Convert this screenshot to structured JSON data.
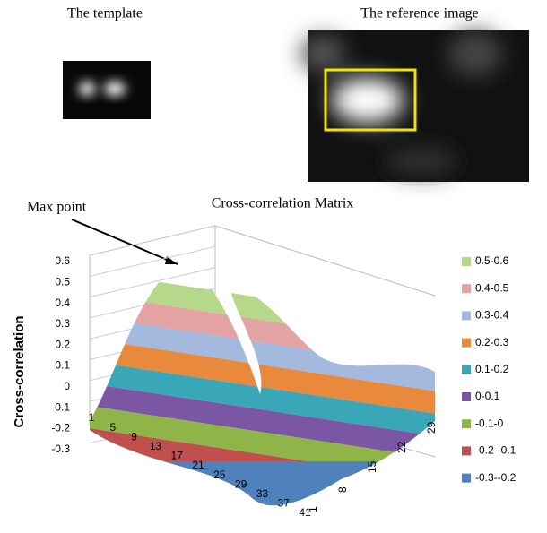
{
  "panels": {
    "template": {
      "title": "The template"
    },
    "reference": {
      "title": "The reference image"
    }
  },
  "annotation": "Max point",
  "chart": {
    "title": "Cross-correlation Matrix",
    "y_axis_label": "Cross-correlation",
    "yticks": [
      "0.6",
      "0.5",
      "0.4",
      "0.3",
      "0.2",
      "0.1",
      "0",
      "-0.1",
      "-0.2",
      "-0.3"
    ],
    "xticks": [
      "1",
      "5",
      "9",
      "13",
      "17",
      "21",
      "25",
      "29",
      "33",
      "37",
      "41"
    ],
    "depth_ticks": [
      "1",
      "8",
      "15",
      "22",
      "29"
    ],
    "legend": [
      {
        "label": "0.5-0.6",
        "color": "#b5d88a"
      },
      {
        "label": "0.4-0.5",
        "color": "#e3a3a2"
      },
      {
        "label": "0.3-0.4",
        "color": "#a3b9de"
      },
      {
        "label": "0.2-0.3",
        "color": "#e9893c"
      },
      {
        "label": "0.1-0.2",
        "color": "#3aa7b9"
      },
      {
        "label": "0-0.1",
        "color": "#7b57a3"
      },
      {
        "label": "-0.1-0",
        "color": "#8fb548"
      },
      {
        "label": "-0.2--0.1",
        "color": "#c0504d"
      },
      {
        "label": "-0.3--0.2",
        "color": "#4f81bd"
      }
    ]
  }
}
